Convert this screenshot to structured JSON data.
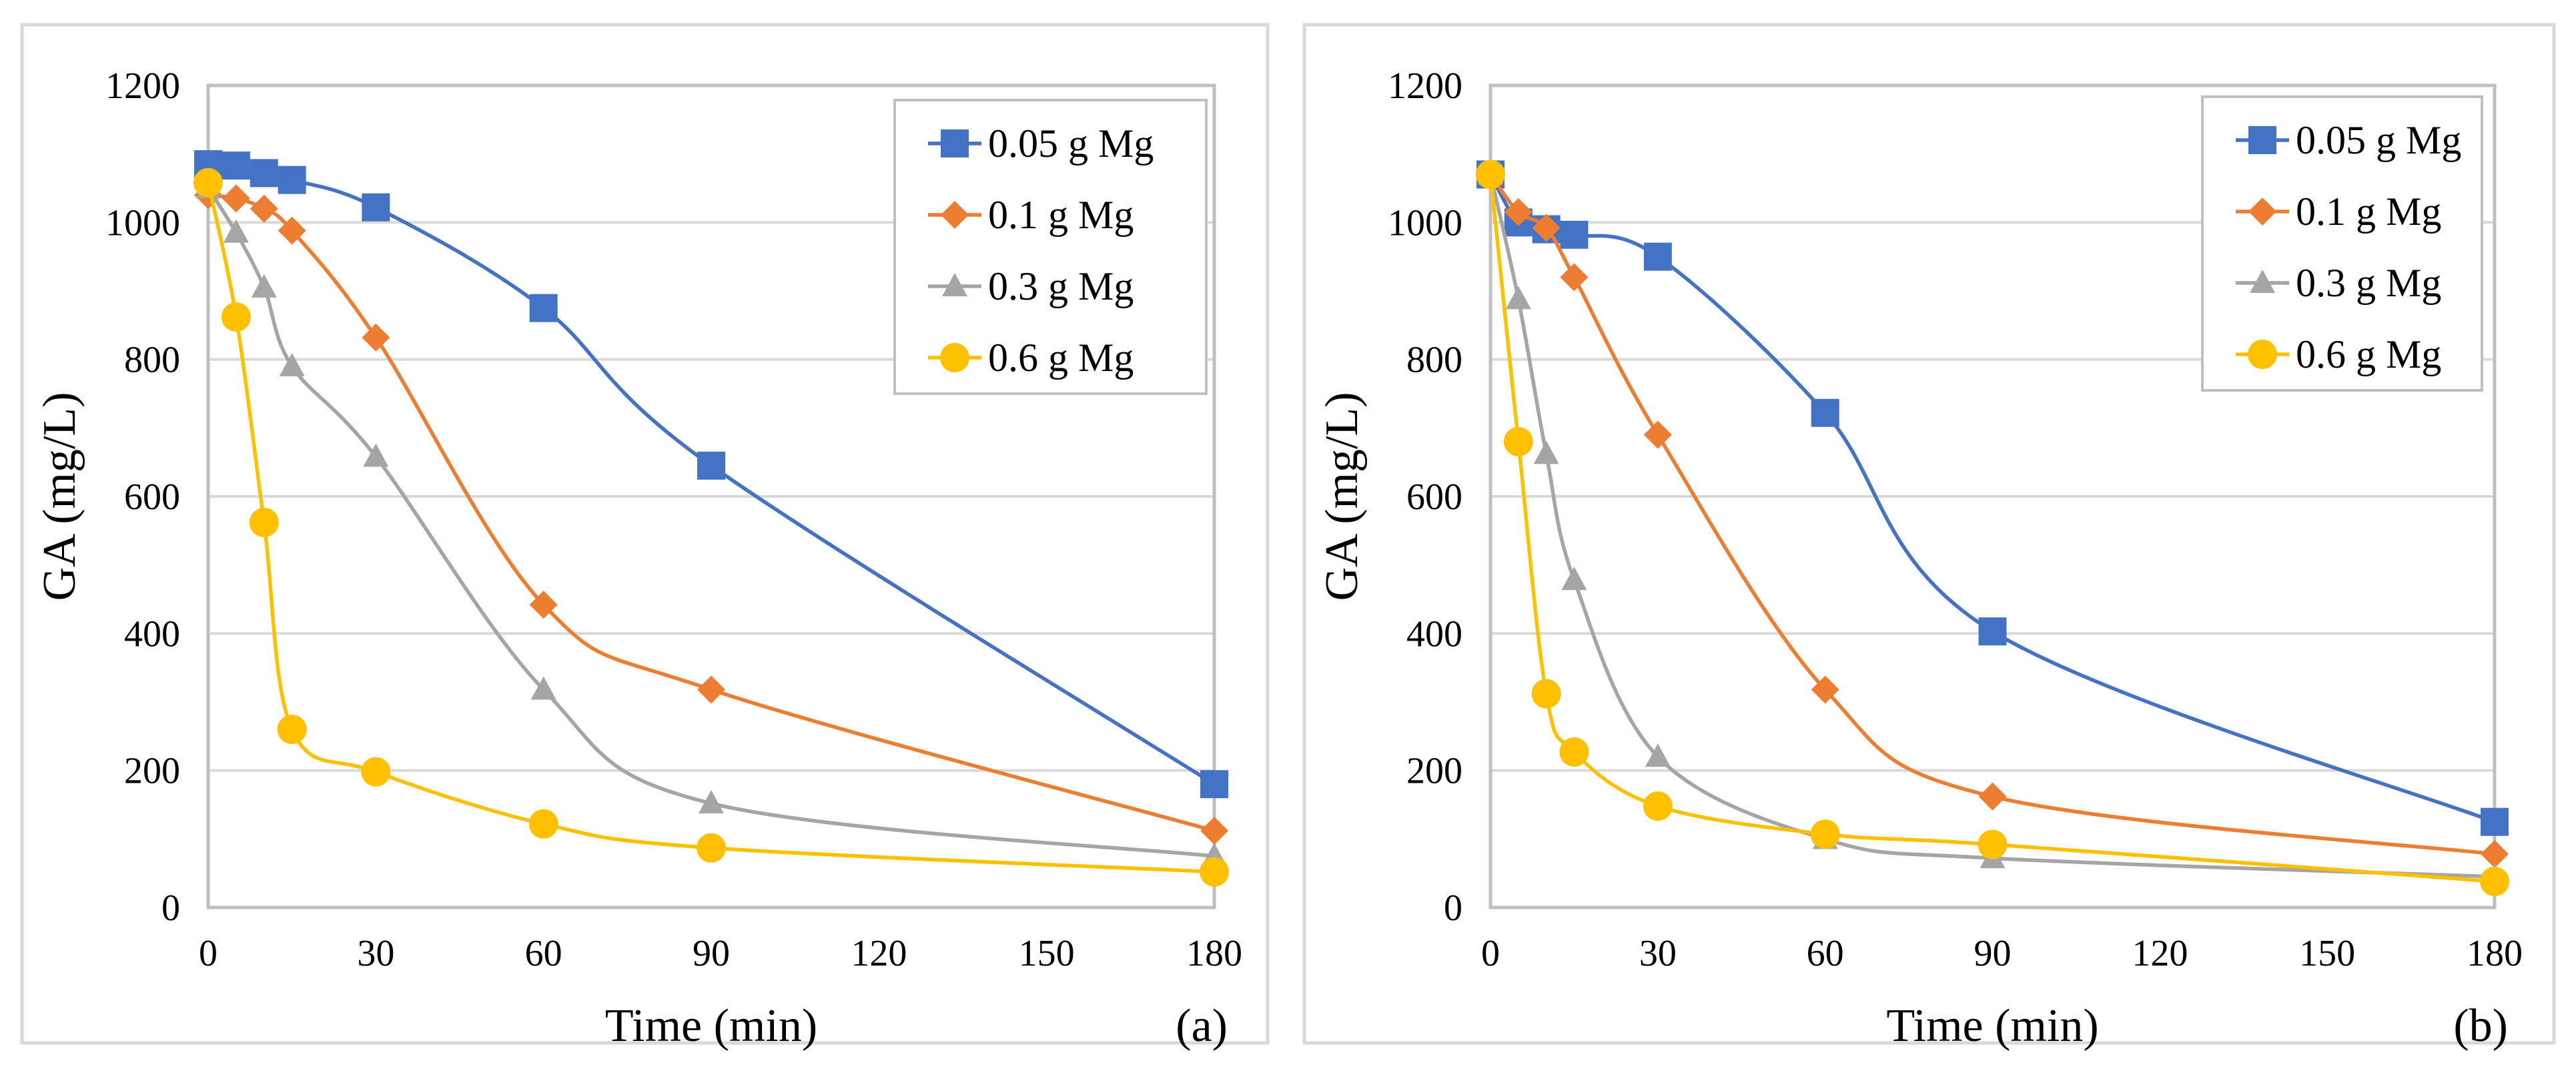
{
  "colors": {
    "s0": "#4472C4",
    "s1": "#ED7D31",
    "s2": "#A5A5A5",
    "s3": "#FFC000",
    "grid": "#D9D9D9",
    "frame": "#BFBFBF"
  },
  "chart_data": [
    {
      "type": "line",
      "panel_label": "(a)",
      "xlabel": "Time (min)",
      "ylabel": "GA (mg/L)",
      "xlim": [
        0,
        180
      ],
      "ylim": [
        0,
        1200
      ],
      "xticks": [
        "0",
        "30",
        "60",
        "90",
        "120",
        "150",
        "180"
      ],
      "yticks": [
        "0",
        "200",
        "400",
        "600",
        "800",
        "1000",
        "1200"
      ],
      "grid": true,
      "legend_position": "top-right",
      "x": [
        0,
        5,
        10,
        15,
        30,
        60,
        90,
        180
      ],
      "series": [
        {
          "name": "0.05 g Mg",
          "marker": "square",
          "values": [
            1085,
            1083,
            1072,
            1062,
            1022,
            875,
            645,
            180
          ]
        },
        {
          "name": "0.1 g Mg",
          "marker": "diamond",
          "values": [
            1040,
            1035,
            1020,
            988,
            832,
            442,
            318,
            112
          ]
        },
        {
          "name": "0.3 g Mg",
          "marker": "triangle",
          "values": [
            1050,
            985,
            905,
            790,
            658,
            318,
            152,
            75
          ]
        },
        {
          "name": "0.6 g Mg",
          "marker": "circle",
          "values": [
            1058,
            862,
            562,
            260,
            198,
            122,
            87,
            52
          ]
        }
      ]
    },
    {
      "type": "line",
      "panel_label": "(b)",
      "xlabel": "Time (min)",
      "ylabel": "GA (mg/L)",
      "xlim": [
        0,
        180
      ],
      "ylim": [
        0,
        1200
      ],
      "xticks": [
        "0",
        "30",
        "60",
        "90",
        "120",
        "150",
        "180"
      ],
      "yticks": [
        "0",
        "200",
        "400",
        "600",
        "800",
        "1000",
        "1200"
      ],
      "grid": true,
      "legend_position": "top-right",
      "x": [
        0,
        5,
        10,
        15,
        30,
        60,
        90,
        180
      ],
      "series": [
        {
          "name": "0.05 g Mg",
          "marker": "square",
          "values": [
            1070,
            1000,
            990,
            982,
            950,
            722,
            403,
            125
          ]
        },
        {
          "name": "0.1 g Mg",
          "marker": "diamond",
          "values": [
            1070,
            1015,
            992,
            920,
            690,
            318,
            162,
            78
          ]
        },
        {
          "name": "0.3 g Mg",
          "marker": "triangle",
          "values": [
            1070,
            888,
            662,
            478,
            220,
            100,
            72,
            45
          ]
        },
        {
          "name": "0.6 g Mg",
          "marker": "circle",
          "values": [
            1070,
            680,
            312,
            227,
            148,
            107,
            92,
            38
          ]
        }
      ]
    }
  ]
}
